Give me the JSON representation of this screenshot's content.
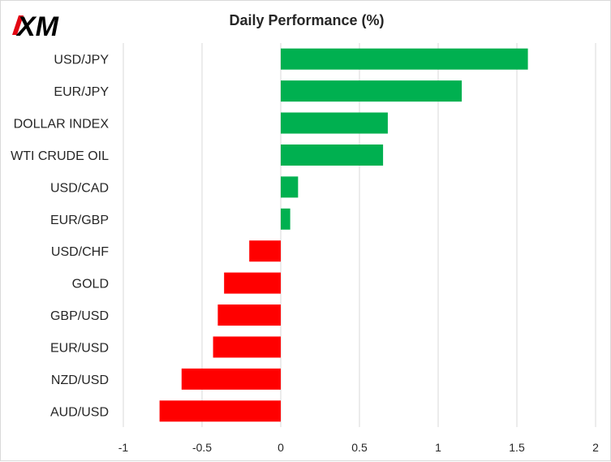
{
  "logo": {
    "text": "XM",
    "accent_color": "#e30613"
  },
  "chart_data": {
    "type": "bar",
    "orientation": "horizontal",
    "title": "Daily Performance  (%)",
    "categories": [
      "USD/JPY",
      "EUR/JPY",
      "DOLLAR INDEX",
      "WTI CRUDE OIL",
      "USD/CAD",
      "EUR/GBP",
      "USD/CHF",
      "GOLD",
      "GBP/USD",
      "EUR/USD",
      "NZD/USD",
      "AUD/USD"
    ],
    "values": [
      1.57,
      1.15,
      0.68,
      0.65,
      0.11,
      0.06,
      -0.2,
      -0.36,
      -0.4,
      -0.43,
      -0.63,
      -0.77
    ],
    "xlim": [
      -1,
      2
    ],
    "xticks": [
      -1,
      -0.5,
      0,
      0.5,
      1,
      1.5,
      2
    ],
    "xtick_labels": [
      "-1",
      "-0.5",
      "0",
      "0.5",
      "1",
      "1.5",
      "2"
    ],
    "xlabel": "",
    "ylabel": "",
    "grid": true,
    "colors": {
      "positive": "#00b050",
      "negative": "#ff0000",
      "grid": "#d9d9d9",
      "text": "#262626"
    }
  }
}
